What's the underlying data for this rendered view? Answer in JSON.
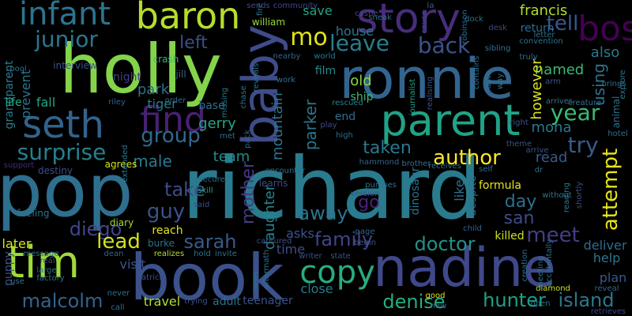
{
  "words": [
    {
      "text": "richard",
      "color": "#2a7b8e"
    },
    {
      "text": "pop",
      "color": "#2e6e8e"
    },
    {
      "text": "book",
      "color": "#3b518b"
    },
    {
      "text": "holly",
      "color": "#84d44b"
    },
    {
      "text": "ronnie",
      "color": "#32648e"
    },
    {
      "text": "baby",
      "color": "#3e4c8a"
    },
    {
      "text": "nadine",
      "color": "#3f4889"
    },
    {
      "text": "parent",
      "color": "#20a386"
    },
    {
      "text": "story",
      "color": "#472d7b"
    },
    {
      "text": "tim",
      "color": "#a0da39"
    },
    {
      "text": "infant",
      "color": "#2c738e"
    },
    {
      "text": "baron",
      "color": "#b5de2b"
    },
    {
      "text": "seth",
      "color": "#33638d"
    },
    {
      "text": "copy",
      "color": "#27ad81"
    },
    {
      "text": "find",
      "color": "#482173"
    },
    {
      "text": "bos",
      "color": "#440154"
    },
    {
      "text": "junior",
      "color": "#2a778e"
    },
    {
      "text": "mo",
      "color": "#e2e418"
    },
    {
      "text": "tell",
      "color": "#38588c"
    },
    {
      "text": "leave",
      "color": "#277f8e"
    },
    {
      "text": "back",
      "color": "#3b528b"
    },
    {
      "text": "left",
      "color": "#3d4e8a"
    },
    {
      "text": "group",
      "color": "#31688e"
    },
    {
      "text": "surprise",
      "color": "#277f8e"
    },
    {
      "text": "author",
      "color": "#fde725"
    },
    {
      "text": "year",
      "color": "#3aba76"
    },
    {
      "text": "try",
      "color": "#375a8c"
    },
    {
      "text": "attempt",
      "color": "#e5e419"
    },
    {
      "text": "mother",
      "color": "#443983"
    },
    {
      "text": "daughter",
      "color": "#25848e"
    },
    {
      "text": "take",
      "color": "#3d4d8a"
    },
    {
      "text": "away",
      "color": "#2c738e"
    },
    {
      "text": "taken",
      "color": "#2a788e"
    },
    {
      "text": "parker",
      "color": "#2a768e"
    },
    {
      "text": "guy",
      "color": "#3b518b"
    },
    {
      "text": "diego",
      "color": "#404588"
    },
    {
      "text": "lead",
      "color": "#d2e21b"
    },
    {
      "text": "sarah",
      "color": "#375b8d"
    },
    {
      "text": "family",
      "color": "#414487"
    },
    {
      "text": "doctor",
      "color": "#21918c"
    },
    {
      "text": "meet",
      "color": "#433e85"
    },
    {
      "text": "hunter",
      "color": "#1fa088"
    },
    {
      "text": "island",
      "color": "#2a788e"
    },
    {
      "text": "denise",
      "color": "#25ac82"
    },
    {
      "text": "malcolm",
      "color": "#33638d"
    },
    {
      "text": "go",
      "color": "#482374"
    },
    {
      "text": "day",
      "color": "#2d718e"
    },
    {
      "text": "san",
      "color": "#3e4a89"
    },
    {
      "text": "mountain",
      "color": "#2c728e"
    },
    {
      "text": "gerry",
      "color": "#22a785"
    },
    {
      "text": "male",
      "color": "#2a788e"
    },
    {
      "text": "team",
      "color": "#228c8d"
    },
    {
      "text": "old",
      "color": "#8bd646"
    },
    {
      "text": "save",
      "color": "#20a386"
    },
    {
      "text": "house",
      "color": "#2a788e"
    },
    {
      "text": "film",
      "color": "#24878e"
    },
    {
      "text": "ship",
      "color": "#3dbc74"
    },
    {
      "text": "end",
      "color": "#2e6e8e"
    },
    {
      "text": "using",
      "color": "#2c728e"
    },
    {
      "text": "named",
      "color": "#38b977"
    },
    {
      "text": "also",
      "color": "#2a788e"
    },
    {
      "text": "however",
      "color": "#d8e219"
    },
    {
      "text": "mona",
      "color": "#2a788e"
    },
    {
      "text": "read",
      "color": "#38588c"
    },
    {
      "text": "francis",
      "color": "#b2dd2d"
    },
    {
      "text": "return",
      "color": "#306a8e"
    },
    {
      "text": "grandparent",
      "color": "#287c8e"
    },
    {
      "text": "prevent",
      "color": "#2b758e"
    },
    {
      "text": "park",
      "color": "#2d708e"
    },
    {
      "text": "tiger",
      "color": "#297a8e"
    },
    {
      "text": "night",
      "color": "#433d84"
    },
    {
      "text": "life",
      "color": "#24aa83"
    },
    {
      "text": "fall",
      "color": "#21a585"
    },
    {
      "text": "visit",
      "color": "#39568c"
    },
    {
      "text": "later",
      "color": "#d5e21a"
    },
    {
      "text": "puppy",
      "color": "#3b528b"
    },
    {
      "text": "travel",
      "color": "#b0dd2f"
    },
    {
      "text": "adult",
      "color": "#2c738e"
    },
    {
      "text": "teenager",
      "color": "#3a538b"
    },
    {
      "text": "close",
      "color": "#297b8e"
    },
    {
      "text": "time",
      "color": "#3d4e8a"
    },
    {
      "text": "killed",
      "color": "#cde11d"
    },
    {
      "text": "help",
      "color": "#2a788e"
    },
    {
      "text": "deliver",
      "color": "#2f6b8e"
    },
    {
      "text": "plan",
      "color": "#38588c"
    },
    {
      "text": "asks",
      "color": "#3b528b"
    },
    {
      "text": "dinosaur",
      "color": "#2c728e"
    },
    {
      "text": "like",
      "color": "#2d708e"
    },
    {
      "text": "despite",
      "color": "#2d708e"
    },
    {
      "text": "formula",
      "color": "#e7e419"
    },
    {
      "text": "learns",
      "color": "#3e4989"
    },
    {
      "text": "reach",
      "color": "#e2e418"
    },
    {
      "text": "burke",
      "color": "#2c738e"
    },
    {
      "text": "diary",
      "color": "#a2da37"
    },
    {
      "text": "base",
      "color": "#2f6c8e"
    },
    {
      "text": "interview",
      "color": "#3b528b"
    },
    {
      "text": "crash",
      "color": "#35b779"
    },
    {
      "text": "jill",
      "color": "#33628d"
    },
    {
      "text": "william",
      "color": "#9dd93b"
    },
    {
      "text": "sends",
      "color": "#3e4a89"
    },
    {
      "text": "community",
      "color": "#3f4889"
    },
    {
      "text": "sneak",
      "color": "#2e6f8e"
    },
    {
      "text": "castle",
      "color": "#3f4889"
    },
    {
      "text": "la",
      "color": "#33638d"
    },
    {
      "text": "pool",
      "color": "#2d708e"
    },
    {
      "text": "riley",
      "color": "#33628d"
    },
    {
      "text": "order",
      "color": "#2f6c8e"
    },
    {
      "text": "support",
      "color": "#482878"
    },
    {
      "text": "destiny",
      "color": "#3e4c8a"
    },
    {
      "text": "agrees",
      "color": "#d2e21b"
    },
    {
      "text": "extended",
      "color": "#2a788e"
    },
    {
      "text": "feeling",
      "color": "#2c738e"
    },
    {
      "text": "secure",
      "color": "#2f6c8e"
    },
    {
      "text": "skill",
      "color": "#25ab82"
    },
    {
      "text": "said",
      "color": "#3b528b"
    },
    {
      "text": "captured",
      "color": "#3b528b"
    },
    {
      "text": "realizes",
      "color": "#b5de2b"
    },
    {
      "text": "hold",
      "color": "#2c728e"
    },
    {
      "text": "invite",
      "color": "#2c728e"
    },
    {
      "text": "writer",
      "color": "#3b528b"
    },
    {
      "text": "state",
      "color": "#3b528b"
    },
    {
      "text": "page",
      "color": "#33638d"
    },
    {
      "text": "begin",
      "color": "#3b528b"
    },
    {
      "text": "encounter",
      "color": "#2c728e"
    },
    {
      "text": "pursues",
      "color": "#2c728e"
    },
    {
      "text": "receives",
      "color": "#2d708e"
    },
    {
      "text": "brother",
      "color": "#2d708e"
    },
    {
      "text": "hammond",
      "color": "#33638d"
    },
    {
      "text": "high",
      "color": "#2d708e"
    },
    {
      "text": "play",
      "color": "#3f4889"
    },
    {
      "text": "world",
      "color": "#2a788e"
    },
    {
      "text": "rescued",
      "color": "#277f8e"
    },
    {
      "text": "journalist",
      "color": "#1fa088"
    },
    {
      "text": "message",
      "color": "#2d708e"
    },
    {
      "text": "factory",
      "color": "#2c738e"
    },
    {
      "text": "large",
      "color": "#2c738e"
    },
    {
      "text": "real",
      "color": "#3e4a89"
    },
    {
      "text": "use",
      "color": "#2a788e"
    },
    {
      "text": "call",
      "color": "#2d708e"
    },
    {
      "text": "never",
      "color": "#2d708e"
    },
    {
      "text": "dean",
      "color": "#33638d"
    },
    {
      "text": "patrick",
      "color": "#3b528b"
    },
    {
      "text": "trying",
      "color": "#3b528b"
    },
    {
      "text": "news",
      "color": "#2c728e"
    },
    {
      "text": "aftermath",
      "color": "#2c728e"
    },
    {
      "text": "good",
      "color": "#e5e419"
    },
    {
      "text": "new",
      "color": "#2c738e"
    },
    {
      "text": "child",
      "color": "#33638d"
    },
    {
      "text": "open",
      "color": "#2d708e"
    },
    {
      "text": "diamond",
      "color": "#cde11d"
    },
    {
      "text": "meeting",
      "color": "#2d708e"
    },
    {
      "text": "accidentally",
      "color": "#2d708e"
    },
    {
      "text": "creation",
      "color": "#2d708e"
    },
    {
      "text": "reveal",
      "color": "#33638d"
    },
    {
      "text": "retrieves",
      "color": "#3f4889"
    },
    {
      "text": "shortly",
      "color": "#3e4a89"
    },
    {
      "text": "without",
      "color": "#2c738e"
    },
    {
      "text": "reading",
      "color": "#2a788e"
    },
    {
      "text": "dr",
      "color": "#2d708e"
    },
    {
      "text": "self",
      "color": "#2d708e"
    },
    {
      "text": "theme",
      "color": "#3b528b"
    },
    {
      "text": "arrive",
      "color": "#3b528b"
    },
    {
      "text": "hotel",
      "color": "#2d708e"
    },
    {
      "text": "right",
      "color": "#3b528b"
    },
    {
      "text": "arrives",
      "color": "#2c738e"
    },
    {
      "text": "creature",
      "color": "#2c738e"
    },
    {
      "text": "animal",
      "color": "#2c728e"
    },
    {
      "text": "explore",
      "color": "#2a788e"
    },
    {
      "text": "brings",
      "color": "#2d708e"
    },
    {
      "text": "arm",
      "color": "#3b528b"
    },
    {
      "text": "way",
      "color": "#2d708e"
    },
    {
      "text": "truly",
      "color": "#2c728e"
    },
    {
      "text": "convention",
      "color": "#2c738e"
    },
    {
      "text": "letter",
      "color": "#2c738e"
    },
    {
      "text": "desk",
      "color": "#3f4889"
    },
    {
      "text": "dock",
      "color": "#2d708e"
    },
    {
      "text": "sibling",
      "color": "#2c738e"
    },
    {
      "text": "auto",
      "color": "#2c728e"
    },
    {
      "text": "contains",
      "color": "#2d708e"
    },
    {
      "text": "realising",
      "color": "#3b528b"
    },
    {
      "text": "missing",
      "color": "#2a788e"
    },
    {
      "text": "chase",
      "color": "#2c738e"
    },
    {
      "text": "reveals",
      "color": "#2c738e"
    },
    {
      "text": "nearby",
      "color": "#33638d"
    },
    {
      "text": "work",
      "color": "#2c728e"
    },
    {
      "text": "met",
      "color": "#2d708e"
    },
    {
      "text": "pack",
      "color": "#33638d"
    },
    {
      "text": "fire",
      "color": "#2c738e"
    },
    {
      "text": "robinson",
      "color": "#2d708e"
    },
    {
      "text": "cause",
      "color": "#3e4a89"
    },
    {
      "text": "version",
      "color": "#3b528b"
    }
  ]
}
